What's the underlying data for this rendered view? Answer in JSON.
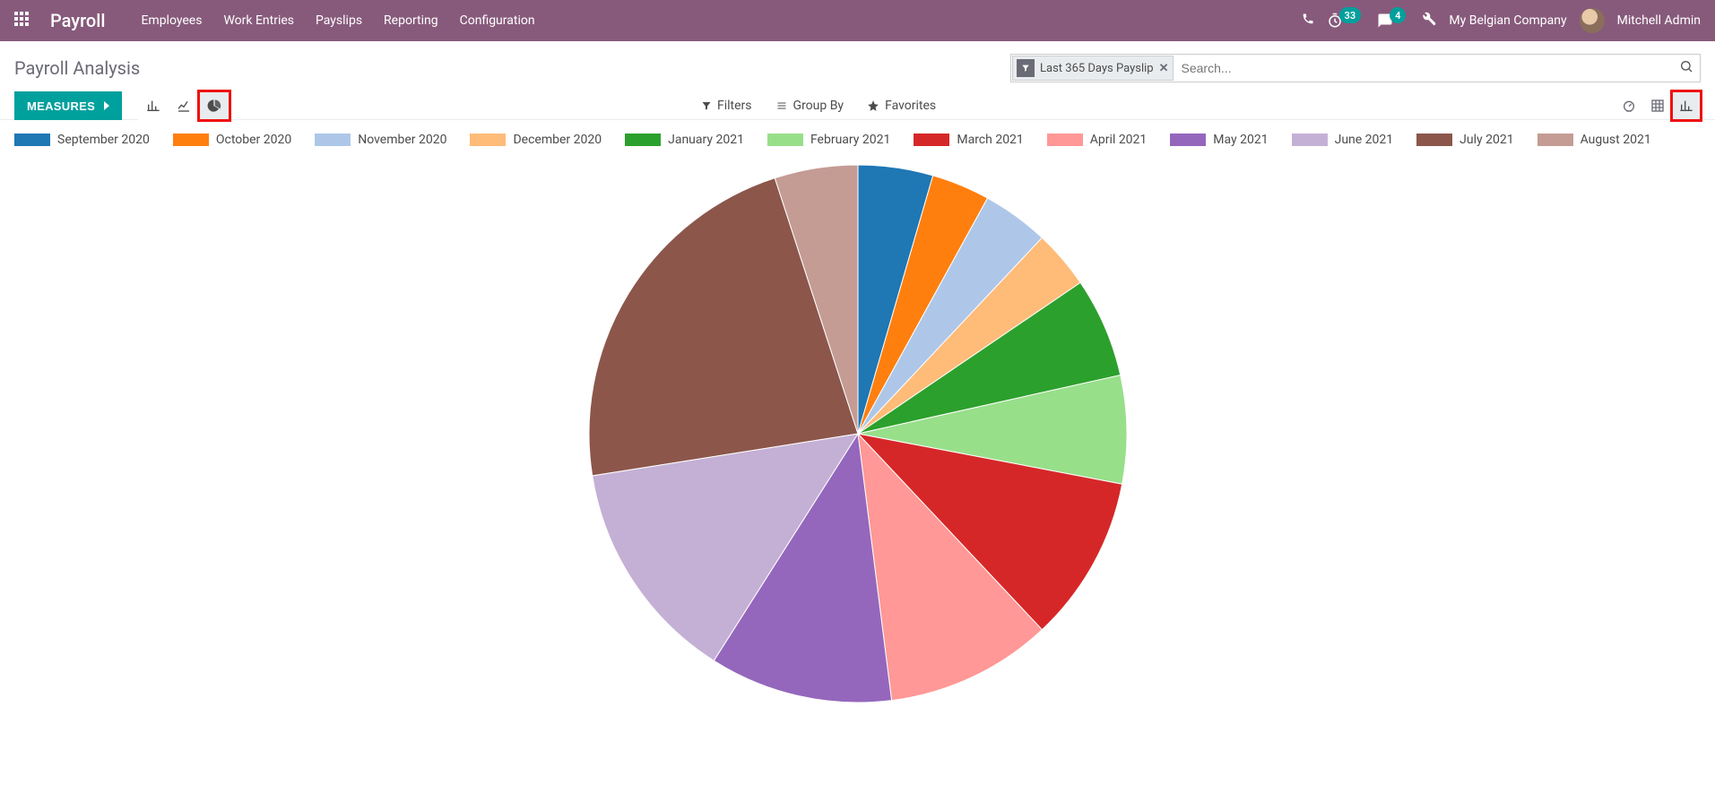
{
  "nav": {
    "brand": "Payroll",
    "menu": [
      "Employees",
      "Work Entries",
      "Payslips",
      "Reporting",
      "Configuration"
    ],
    "timer_badge": "33",
    "chat_badge": "4",
    "company": "My Belgian Company",
    "user": "Mitchell Admin"
  },
  "page": {
    "title": "Payroll Analysis",
    "search_chip": "Last 365 Days Payslip",
    "search_placeholder": "Search...",
    "measures_label": "MEASURES",
    "filters_label": "Filters",
    "groupby_label": "Group By",
    "favorites_label": "Favorites"
  },
  "chart": {
    "type": "pie",
    "background": "#ffffff",
    "legend_fontsize": 14,
    "legend_swatch_w": 40,
    "legend_swatch_h": 14,
    "series": [
      {
        "label": "September 2020",
        "value": 4.5,
        "color": "#1f77b4"
      },
      {
        "label": "October 2020",
        "value": 3.5,
        "color": "#ff7f0e"
      },
      {
        "label": "November 2020",
        "value": 4.0,
        "color": "#aec7e8"
      },
      {
        "label": "December 2020",
        "value": 3.5,
        "color": "#ffbb78"
      },
      {
        "label": "January 2021",
        "value": 6.0,
        "color": "#2ca02c"
      },
      {
        "label": "February 2021",
        "value": 6.5,
        "color": "#98df8a"
      },
      {
        "label": "March 2021",
        "value": 10.0,
        "color": "#d62728"
      },
      {
        "label": "April 2021",
        "value": 10.0,
        "color": "#ff9896"
      },
      {
        "label": "May 2021",
        "value": 11.0,
        "color": "#9467bd"
      },
      {
        "label": "June 2021",
        "value": 13.5,
        "color": "#c5b0d5"
      },
      {
        "label": "July 2021",
        "value": 22.5,
        "color": "#8c564b"
      },
      {
        "label": "August 2021",
        "value": 5.0,
        "color": "#c49c94"
      }
    ],
    "stroke": "#ffffff",
    "stroke_width": 1
  },
  "colors": {
    "nav_bg": "#875a7b",
    "accent": "#00a09d",
    "highlight_border": "#ef1010"
  }
}
